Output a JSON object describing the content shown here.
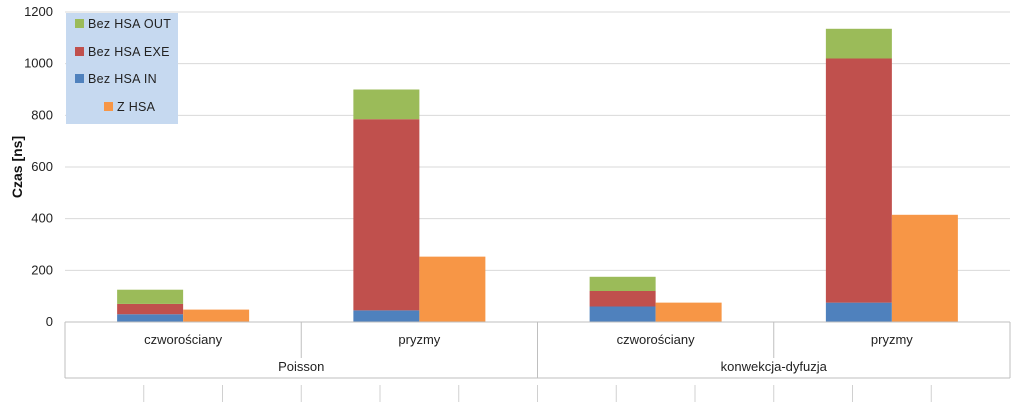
{
  "chart_data": {
    "type": "bar",
    "stacked": true,
    "title": "",
    "ylabel": "Czas [ns]",
    "ylim": [
      0,
      1200
    ],
    "yticks": [
      0,
      200,
      400,
      600,
      800,
      1000,
      1200
    ],
    "grid": true,
    "legend_position": "top-left",
    "groups": [
      {
        "label": "Poisson",
        "categories": [
          "czworościany",
          "pryzmy"
        ]
      },
      {
        "label": "konwekcja-dyfuzja",
        "categories": [
          "czworościany",
          "pryzmy"
        ]
      }
    ],
    "categories": [
      "czworościany",
      "pryzmy",
      "czworościany",
      "pryzmy"
    ],
    "stacked_series": [
      {
        "name": "Bez HSA IN",
        "color": "#4F81BD",
        "values": [
          30,
          45,
          60,
          75
        ]
      },
      {
        "name": "Bez HSA EXE",
        "color": "#C0504D",
        "values": [
          40,
          740,
          60,
          945
        ]
      },
      {
        "name": "Bez HSA OUT",
        "color": "#9BBB59",
        "values": [
          55,
          115,
          55,
          115
        ]
      }
    ],
    "single_series": {
      "name": "Z HSA",
      "color": "#F79646",
      "values": [
        48,
        253,
        75,
        415
      ]
    },
    "legend": [
      "Bez HSA OUT",
      "Bez HSA EXE",
      "Bez HSA IN",
      "Z HSA"
    ]
  }
}
